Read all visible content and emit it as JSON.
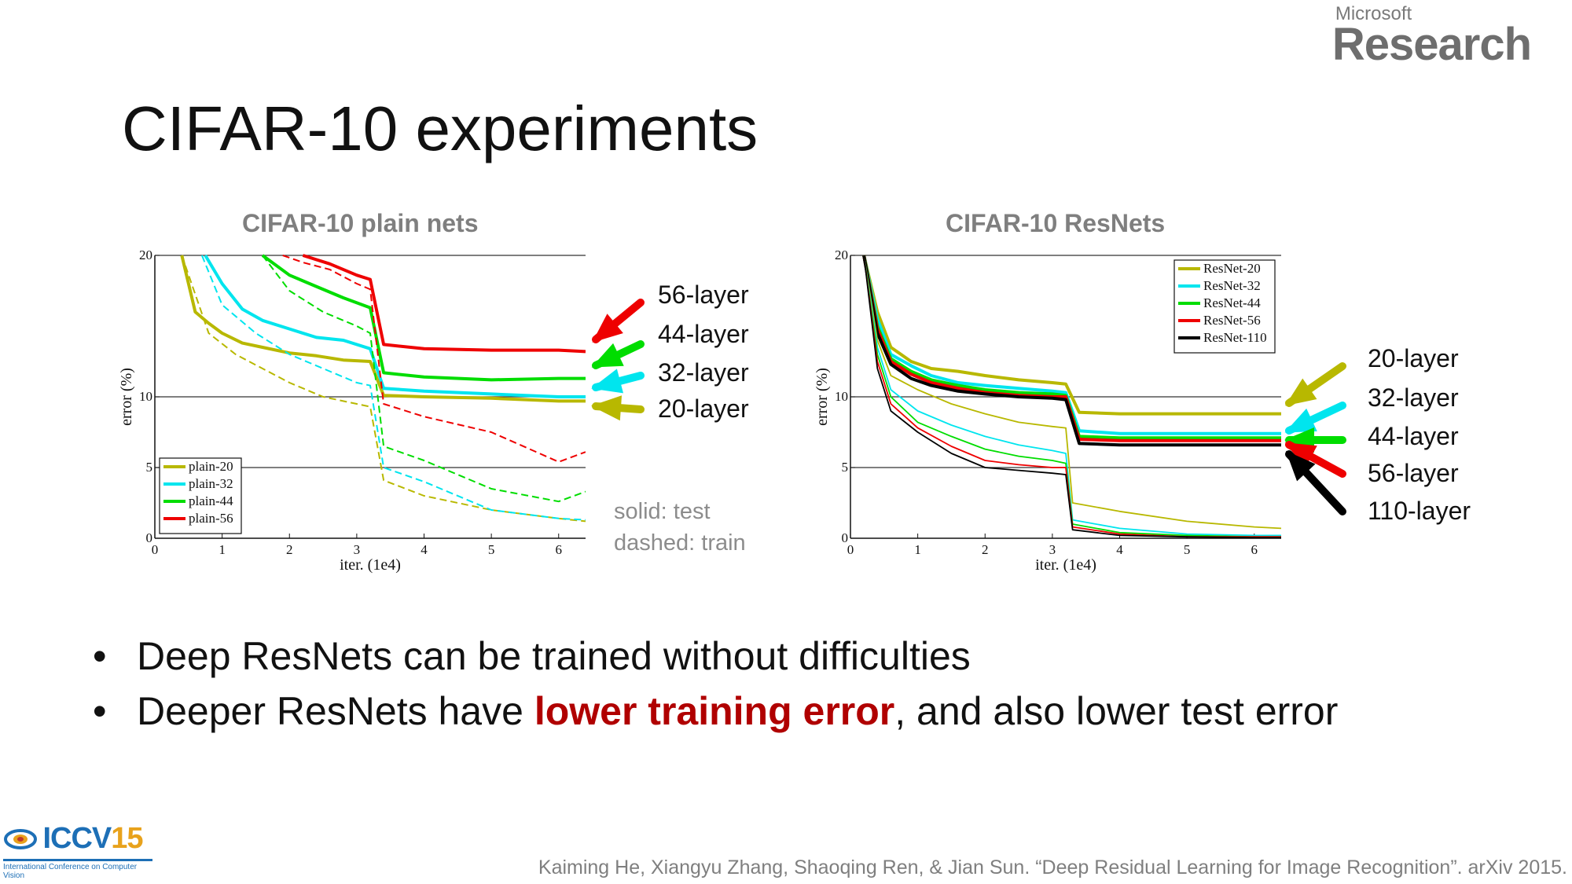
{
  "header": {
    "logo_small": "Microsoft",
    "logo_big": "Research",
    "title": "CIFAR-10 experiments"
  },
  "bullets": {
    "b1": "Deep ResNets can be trained without difficulties",
    "b2_pre": "Deeper ResNets have ",
    "b2_hl": "lower training error",
    "b2_post": ", and also lower test error"
  },
  "annotations": {
    "plain_labels": [
      "56-layer",
      "44-layer",
      "32-layer",
      "20-layer"
    ],
    "res_labels": [
      "20-layer",
      "32-layer",
      "44-layer",
      "56-layer",
      "110-layer"
    ],
    "note_line1": "solid: test",
    "note_line2": "dashed: train"
  },
  "footer": {
    "citation": "Kaiming He, Xiangyu Zhang, Shaoqing Ren, & Jian Sun. “Deep Residual Learning for Image Recognition”. arXiv 2015.",
    "iccv_name": "ICCV",
    "iccv_year": "15",
    "iccv_sub": "International Conference on Computer Vision"
  },
  "colors": {
    "n20": "#b8b800",
    "n32": "#00e5ee",
    "n44": "#00dd00",
    "n56": "#ee0000",
    "n110": "#000000",
    "highlight": "#b00000"
  },
  "chart_data": [
    {
      "type": "line",
      "title": "CIFAR-10 plain nets",
      "xlabel": "iter. (1e4)",
      "ylabel": "error (%)",
      "xlim": [
        0,
        6.4
      ],
      "ylim": [
        0,
        20
      ],
      "xticks": [
        0,
        1,
        2,
        3,
        4,
        5,
        6
      ],
      "yticks": [
        0,
        5,
        10,
        20
      ],
      "grid": "horizontal at 5, 10, 20",
      "legend_position": "bottom-left",
      "legend": [
        "plain-20",
        "plain-32",
        "plain-44",
        "plain-56"
      ],
      "series": [
        {
          "name": "plain-20",
          "style": "solid",
          "color_key": "n20",
          "x": [
            0.4,
            0.6,
            0.8,
            1.0,
            1.3,
            1.6,
            2.0,
            2.4,
            2.8,
            3.2,
            3.4,
            4.0,
            5.0,
            6.0,
            6.4
          ],
          "y": [
            20,
            16.0,
            15.2,
            14.5,
            13.8,
            13.5,
            13.1,
            12.9,
            12.6,
            12.5,
            10.1,
            10.0,
            9.9,
            9.7,
            9.7
          ]
        },
        {
          "name": "plain-32",
          "style": "solid",
          "color_key": "n32",
          "x": [
            0.75,
            1.0,
            1.3,
            1.6,
            2.0,
            2.4,
            2.8,
            3.2,
            3.4,
            4.0,
            5.0,
            6.0,
            6.4
          ],
          "y": [
            20,
            18.0,
            16.2,
            15.4,
            14.8,
            14.2,
            14.0,
            13.4,
            10.6,
            10.4,
            10.2,
            10.0,
            10.0
          ]
        },
        {
          "name": "plain-44",
          "style": "solid",
          "color_key": "n44",
          "x": [
            1.6,
            2.0,
            2.4,
            2.8,
            3.2,
            3.4,
            4.0,
            5.0,
            6.0,
            6.4
          ],
          "y": [
            20,
            18.6,
            17.8,
            17.0,
            16.3,
            11.7,
            11.4,
            11.2,
            11.3,
            11.3
          ]
        },
        {
          "name": "plain-56",
          "style": "solid",
          "color_key": "n56",
          "x": [
            2.2,
            2.6,
            3.0,
            3.2,
            3.4,
            4.0,
            5.0,
            6.0,
            6.4
          ],
          "y": [
            20,
            19.4,
            18.6,
            18.3,
            13.7,
            13.4,
            13.3,
            13.3,
            13.2
          ]
        },
        {
          "name": "plain-20 train",
          "style": "dashed",
          "color_key": "n20",
          "x": [
            0.4,
            0.8,
            1.2,
            1.6,
            2.0,
            2.5,
            3.0,
            3.2,
            3.4,
            4.0,
            5.0,
            6.0,
            6.4
          ],
          "y": [
            20,
            14.5,
            13.0,
            12.0,
            11.0,
            10.0,
            9.5,
            9.3,
            4.1,
            3.0,
            2.0,
            1.4,
            1.2
          ]
        },
        {
          "name": "plain-32 train",
          "style": "dashed",
          "color_key": "n32",
          "x": [
            0.7,
            1.0,
            1.5,
            2.0,
            2.5,
            3.0,
            3.2,
            3.4,
            4.0,
            5.0,
            6.0,
            6.4
          ],
          "y": [
            20,
            16.5,
            14.5,
            13.0,
            12.0,
            11.0,
            10.8,
            5.0,
            4.0,
            2.0,
            1.4,
            1.3
          ]
        },
        {
          "name": "plain-44 train",
          "style": "dashed",
          "color_key": "n44",
          "x": [
            1.6,
            2.0,
            2.5,
            3.0,
            3.2,
            3.4,
            4.0,
            5.0,
            6.0,
            6.4
          ],
          "y": [
            20,
            17.5,
            16.0,
            15.0,
            14.5,
            6.5,
            5.5,
            3.5,
            2.6,
            3.3
          ]
        },
        {
          "name": "plain-56 train",
          "style": "dashed",
          "color_key": "n56",
          "x": [
            1.9,
            2.2,
            2.6,
            3.0,
            3.2,
            3.4,
            4.0,
            5.0,
            6.0,
            6.4
          ],
          "y": [
            20,
            19.5,
            19.0,
            18.0,
            17.6,
            9.5,
            8.6,
            7.5,
            5.4,
            6.1
          ]
        }
      ]
    },
    {
      "type": "line",
      "title": "CIFAR-10 ResNets",
      "xlabel": "iter. (1e4)",
      "ylabel": "error (%)",
      "xlim": [
        0,
        6.4
      ],
      "ylim": [
        0,
        20
      ],
      "xticks": [
        0,
        1,
        2,
        3,
        4,
        5,
        6
      ],
      "yticks": [
        0,
        5,
        10,
        20
      ],
      "grid": "horizontal at 5, 10, 20",
      "legend_position": "top-right",
      "legend": [
        "ResNet-20",
        "ResNet-32",
        "ResNet-44",
        "ResNet-56",
        "ResNet-110"
      ],
      "series": [
        {
          "name": "ResNet-20",
          "style": "solid",
          "color_key": "n20",
          "x": [
            0.2,
            0.4,
            0.6,
            0.9,
            1.2,
            1.6,
            2.0,
            2.5,
            3.0,
            3.2,
            3.4,
            4.0,
            5.0,
            6.0,
            6.4
          ],
          "y": [
            20,
            16.0,
            13.5,
            12.5,
            12.0,
            11.8,
            11.5,
            11.2,
            11.0,
            10.9,
            8.9,
            8.8,
            8.8,
            8.8,
            8.8
          ]
        },
        {
          "name": "ResNet-32",
          "style": "solid",
          "color_key": "n32",
          "x": [
            0.2,
            0.4,
            0.6,
            0.9,
            1.2,
            1.6,
            2.0,
            2.5,
            3.0,
            3.2,
            3.4,
            4.0,
            5.0,
            6.0,
            6.4
          ],
          "y": [
            20,
            15.5,
            13.0,
            12.2,
            11.5,
            11.0,
            10.8,
            10.6,
            10.4,
            10.3,
            7.6,
            7.4,
            7.4,
            7.4,
            7.4
          ]
        },
        {
          "name": "ResNet-44",
          "style": "solid",
          "color_key": "n44",
          "x": [
            0.2,
            0.4,
            0.6,
            0.9,
            1.2,
            1.6,
            2.0,
            2.5,
            3.0,
            3.2,
            3.4,
            4.0,
            5.0,
            6.0,
            6.4
          ],
          "y": [
            20,
            15.0,
            12.7,
            11.8,
            11.2,
            10.8,
            10.5,
            10.3,
            10.2,
            10.1,
            7.2,
            7.1,
            7.1,
            7.1,
            7.1
          ]
        },
        {
          "name": "ResNet-56",
          "style": "solid",
          "color_key": "n56",
          "x": [
            0.2,
            0.4,
            0.6,
            0.9,
            1.2,
            1.6,
            2.0,
            2.5,
            3.0,
            3.2,
            3.4,
            4.0,
            5.0,
            6.0,
            6.4
          ],
          "y": [
            20,
            14.8,
            12.5,
            11.6,
            11.0,
            10.6,
            10.3,
            10.1,
            10.0,
            10.0,
            7.0,
            6.9,
            6.9,
            6.9,
            6.9
          ]
        },
        {
          "name": "ResNet-110",
          "style": "solid",
          "color_key": "n110",
          "x": [
            0.2,
            0.4,
            0.6,
            0.9,
            1.2,
            1.6,
            2.0,
            2.5,
            3.0,
            3.2,
            3.4,
            4.0,
            5.0,
            6.0,
            6.4
          ],
          "y": [
            20,
            14.5,
            12.3,
            11.3,
            10.8,
            10.4,
            10.2,
            10.0,
            9.9,
            9.8,
            6.7,
            6.6,
            6.6,
            6.6,
            6.6
          ]
        },
        {
          "name": "ResNet-20 train",
          "style": "thin",
          "color_key": "n20",
          "x": [
            0.2,
            0.4,
            0.6,
            1.0,
            1.5,
            2.0,
            2.5,
            3.0,
            3.2,
            3.3,
            4.0,
            5.0,
            6.0,
            6.4
          ],
          "y": [
            20,
            14.0,
            11.5,
            10.5,
            9.5,
            8.8,
            8.2,
            7.9,
            7.8,
            2.5,
            1.9,
            1.2,
            0.8,
            0.7
          ]
        },
        {
          "name": "ResNet-32 train",
          "style": "thin",
          "color_key": "n32",
          "x": [
            0.2,
            0.4,
            0.6,
            1.0,
            1.5,
            2.0,
            2.5,
            3.0,
            3.2,
            3.3,
            4.0,
            5.0,
            6.0,
            6.4
          ],
          "y": [
            20,
            13.5,
            10.5,
            9.0,
            8.0,
            7.2,
            6.6,
            6.2,
            6.0,
            1.3,
            0.7,
            0.3,
            0.2,
            0.2
          ]
        },
        {
          "name": "ResNet-44 train",
          "style": "thin",
          "color_key": "n44",
          "x": [
            0.2,
            0.4,
            0.6,
            1.0,
            1.5,
            2.0,
            2.5,
            3.0,
            3.2,
            3.3,
            4.0,
            5.0,
            6.0,
            6.4
          ],
          "y": [
            20,
            13.0,
            10.0,
            8.2,
            7.2,
            6.3,
            5.8,
            5.5,
            5.3,
            1.0,
            0.4,
            0.2,
            0.1,
            0.1
          ]
        },
        {
          "name": "ResNet-56 train",
          "style": "thin",
          "color_key": "n56",
          "x": [
            0.2,
            0.4,
            0.6,
            1.0,
            1.5,
            2.0,
            2.5,
            3.0,
            3.2,
            3.3,
            4.0,
            5.0,
            6.0,
            6.4
          ],
          "y": [
            20,
            12.5,
            9.5,
            7.8,
            6.5,
            5.5,
            5.2,
            5.0,
            5.0,
            0.8,
            0.3,
            0.1,
            0.1,
            0.1
          ]
        },
        {
          "name": "ResNet-110 train",
          "style": "thin",
          "color_key": "n110",
          "x": [
            0.2,
            0.4,
            0.6,
            1.0,
            1.5,
            2.0,
            2.5,
            3.0,
            3.2,
            3.3,
            4.0,
            5.0,
            6.0,
            6.4
          ],
          "y": [
            20,
            12.0,
            9.0,
            7.5,
            6.0,
            5.0,
            4.8,
            4.6,
            4.5,
            0.6,
            0.2,
            0.1,
            0.05,
            0.05
          ]
        }
      ]
    }
  ]
}
